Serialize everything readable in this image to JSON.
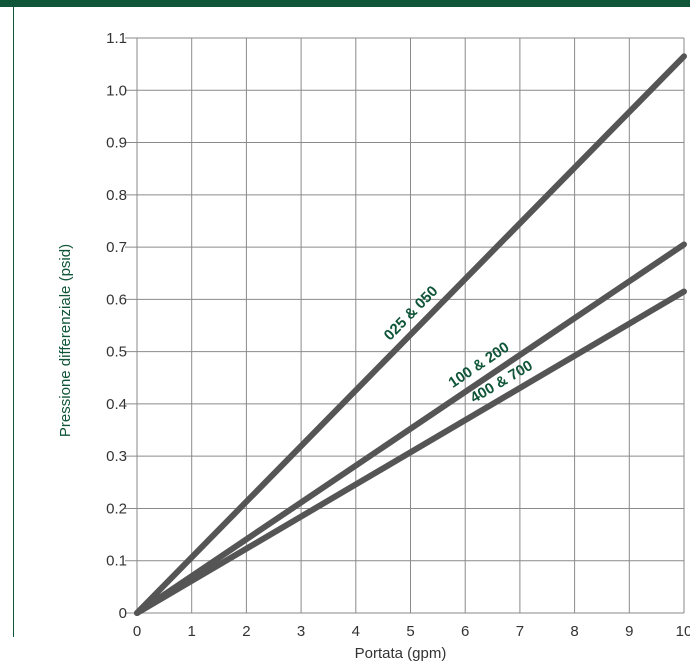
{
  "chart_data": {
    "type": "line",
    "title": "",
    "xlabel": "Portata (gpm)",
    "ylabel": "Pressione differenziale (psid)",
    "xlim": [
      0,
      10
    ],
    "ylim": [
      0,
      1.1
    ],
    "x_ticks": [
      "0",
      "1",
      "2",
      "3",
      "4",
      "5",
      "6",
      "7",
      "8",
      "9",
      "10"
    ],
    "y_ticks": [
      "0",
      "0.1",
      "0.2",
      "0.3",
      "0.4",
      "0.5",
      "0.6",
      "0.7",
      "0.8",
      "0.9",
      "1.0",
      "1.1"
    ],
    "grid": true,
    "series": [
      {
        "name": "025 & 050",
        "x": [
          0,
          10
        ],
        "y": [
          0,
          1.065
        ]
      },
      {
        "name": "100 & 200",
        "x": [
          0,
          10
        ],
        "y": [
          0,
          0.705
        ]
      },
      {
        "name": "400 & 700",
        "x": [
          0,
          10
        ],
        "y": [
          0,
          0.615
        ]
      }
    ]
  },
  "colors": {
    "line": "#555555",
    "label_text": "#0f5537",
    "grid": "#8a8a8a",
    "frame": "#0f5537"
  }
}
